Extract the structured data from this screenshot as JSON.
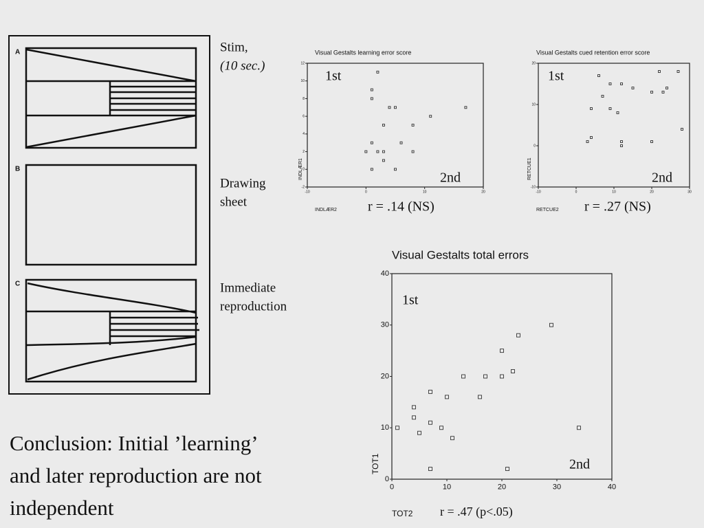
{
  "figure": {
    "panels": [
      {
        "letter": "A",
        "caption": [
          "Stim,",
          "(10 sec.)"
        ]
      },
      {
        "letter": "B",
        "caption": [
          "Drawing",
          "sheet"
        ]
      },
      {
        "letter": "C",
        "caption": [
          "Immediate",
          "reproduction"
        ]
      }
    ]
  },
  "conclusion": [
    "Conclusion: Initial ’learning’",
    "and later reproduction are not",
    "independent"
  ],
  "chart_data": [
    {
      "type": "scatter",
      "title": "Visual Gestalts learning error score",
      "x_label": "INDLÆR2",
      "y_label": "INDLÆR1",
      "annotations": [
        "1st",
        "2nd",
        "r = .14 (NS)"
      ],
      "color": "#333333",
      "xlim": [
        -10,
        20
      ],
      "xticks": [
        -10,
        0,
        10,
        20
      ],
      "ylim": [
        -2,
        12
      ],
      "yticks": [
        -2,
        0,
        2,
        4,
        6,
        8,
        10,
        12
      ],
      "x": [
        2,
        1,
        1,
        4,
        5,
        17,
        11,
        3,
        8,
        1,
        6,
        0,
        2,
        3,
        8,
        3,
        1,
        5
      ],
      "values": [
        11,
        9,
        8,
        7,
        7,
        7,
        6,
        5,
        5,
        3,
        3,
        2,
        2,
        2,
        2,
        1,
        0,
        0
      ]
    },
    {
      "type": "scatter",
      "title": "Visual Gestalts cued retention error score",
      "x_label": "RETCUE2",
      "y_label": "RETCUE1",
      "annotations": [
        "1st",
        "2nd",
        "r = .27 (NS)"
      ],
      "color": "#333333",
      "xlim": [
        -10,
        30
      ],
      "xticks": [
        -10,
        0,
        10,
        20,
        30
      ],
      "ylim": [
        -10,
        20
      ],
      "yticks": [
        -10,
        0,
        10,
        20
      ],
      "x": [
        3,
        4,
        4,
        6,
        7,
        9,
        12,
        11,
        9,
        12,
        12,
        15,
        20,
        20,
        22,
        23,
        24,
        27,
        28
      ],
      "values": [
        1,
        2,
        9,
        17,
        12,
        15,
        15,
        8,
        9,
        1,
        0,
        14,
        1,
        13,
        18,
        13,
        14,
        18,
        4
      ]
    },
    {
      "type": "scatter",
      "title": "Visual Gestalts total errors",
      "x_label": "TOT2",
      "y_label": "TOT1",
      "annotations": [
        "1st",
        "2nd",
        "r = .47 (p<.05)"
      ],
      "color": "#333333",
      "xlim": [
        0,
        40
      ],
      "xticks": [
        0,
        10,
        20,
        30,
        40
      ],
      "ylim": [
        0,
        40
      ],
      "yticks": [
        0,
        10,
        20,
        30,
        40
      ],
      "x": [
        1,
        4,
        4,
        5,
        7,
        7,
        7,
        9,
        10,
        11,
        13,
        16,
        17,
        20,
        20,
        21,
        22,
        23,
        29,
        34
      ],
      "values": [
        10,
        14,
        12,
        9,
        17,
        11,
        2,
        10,
        16,
        8,
        20,
        16,
        20,
        25,
        20,
        2,
        21,
        28,
        30,
        10
      ]
    }
  ]
}
